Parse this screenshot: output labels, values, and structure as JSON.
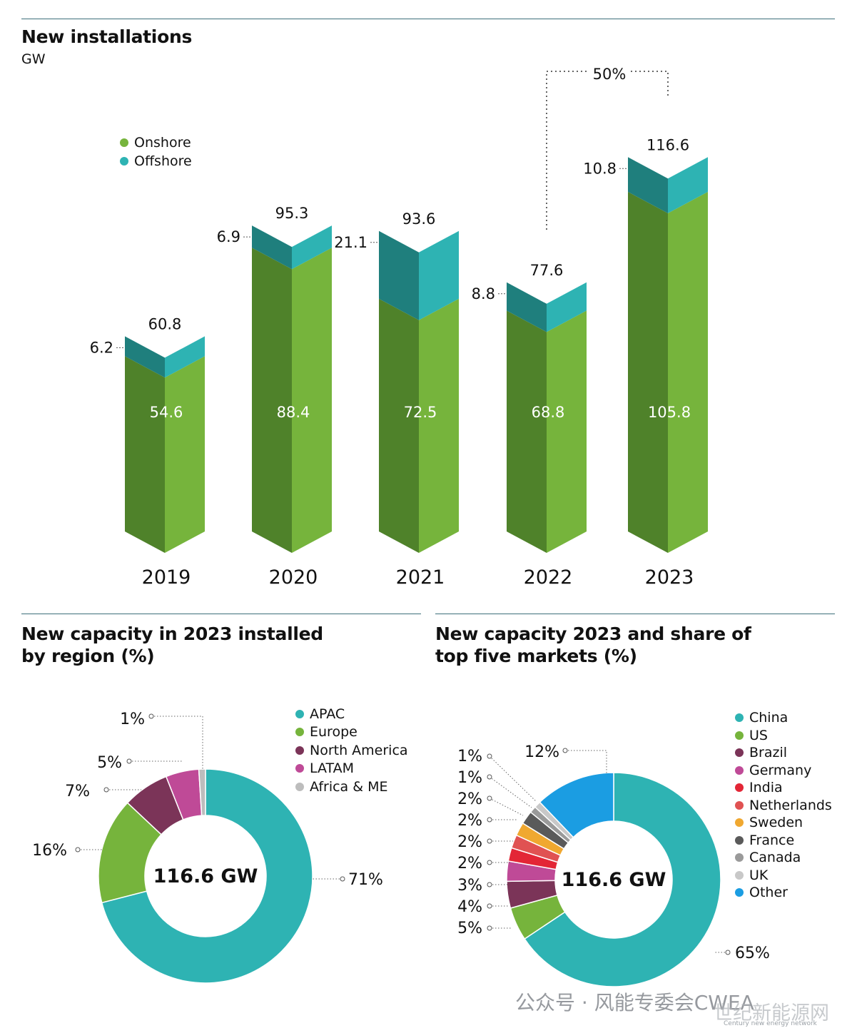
{
  "top": {
    "title": "New installations",
    "unit": "GW",
    "growth_label": "50%"
  },
  "colors": {
    "onshore_front": "#76b43c",
    "onshore_side": "#4f822a",
    "offshore_front": "#2eb3b3",
    "offshore_side": "#1f7f7d",
    "rule": "#3d6f7a"
  },
  "chart_data": [
    {
      "type": "bar",
      "title": "New installations",
      "ylabel": "GW",
      "stacked": true,
      "categories": [
        "2019",
        "2020",
        "2021",
        "2022",
        "2023"
      ],
      "series": [
        {
          "name": "Onshore",
          "values": [
            54.6,
            88.4,
            72.5,
            68.8,
            105.8
          ],
          "color": "#76b43c"
        },
        {
          "name": "Offshore",
          "values": [
            6.2,
            6.9,
            21.1,
            8.8,
            10.8
          ],
          "color": "#2eb3b3"
        }
      ],
      "totals": [
        60.8,
        95.3,
        93.6,
        77.6,
        116.6
      ],
      "annotation": "50%",
      "legend_position": "top-left"
    },
    {
      "type": "pie",
      "title": "New capacity in 2023 installed by region (%)",
      "center_label": "116.6 GW",
      "categories": [
        "APAC",
        "Europe",
        "North America",
        "LATAM",
        "Africa & ME"
      ],
      "values": [
        71,
        16,
        7,
        5,
        1
      ],
      "labels": [
        "71%",
        "16%",
        "7%",
        "5%",
        "1%"
      ],
      "colors": [
        "#2eb3b3",
        "#76b43c",
        "#7b3458",
        "#bf4a97",
        "#bdbdbd"
      ],
      "legend_position": "top-right"
    },
    {
      "type": "pie",
      "title": "New capacity 2023 and share of top five markets (%)",
      "center_label": "116.6 GW",
      "categories": [
        "China",
        "US",
        "Brazil",
        "Germany",
        "India",
        "Netherlands",
        "Sweden",
        "France",
        "Canada",
        "UK",
        "Other"
      ],
      "values": [
        65,
        5,
        4,
        3,
        2,
        2,
        2,
        2,
        1,
        1,
        12
      ],
      "labels": [
        "65%",
        "5%",
        "4%",
        "3%",
        "2%",
        "2%",
        "2%",
        "2%",
        "1%",
        "1%",
        "12%"
      ],
      "colors": [
        "#2eb3b3",
        "#76b43c",
        "#7b3458",
        "#bf4a97",
        "#e32636",
        "#e05252",
        "#f0a830",
        "#5a5a5a",
        "#9a9a9a",
        "#c8c8c8",
        "#1b9de2"
      ],
      "legend_position": "top-right"
    }
  ],
  "watermark": {
    "line1": "公众号 · 风能专委会CWEA",
    "line2": "世纪新能源网",
    "line3": "Century new energy network"
  }
}
